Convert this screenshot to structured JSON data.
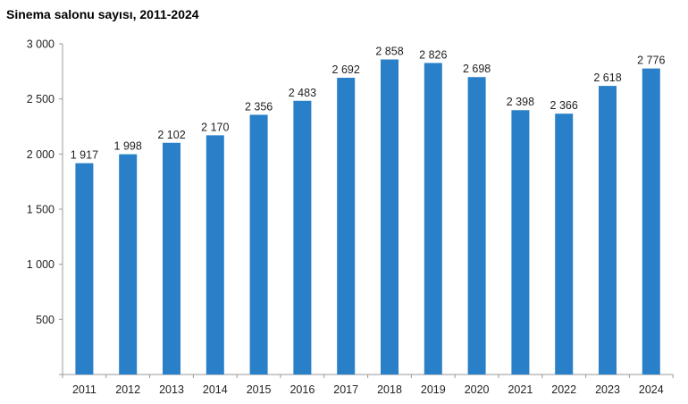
{
  "chart_data": {
    "type": "bar",
    "title": "Sinema salonu sayısı, 2011-2024",
    "xlabel": "",
    "ylabel": "",
    "categories": [
      "2011",
      "2012",
      "2013",
      "2014",
      "2015",
      "2016",
      "2017",
      "2018",
      "2019",
      "2020",
      "2021",
      "2022",
      "2023",
      "2024"
    ],
    "values": [
      1917,
      1998,
      2102,
      2170,
      2356,
      2483,
      2692,
      2858,
      2826,
      2698,
      2398,
      2366,
      2618,
      2776
    ],
    "data_labels": [
      "1 917",
      "1 998",
      "2 102",
      "2 170",
      "2 356",
      "2 483",
      "2 692",
      "2 858",
      "2 826",
      "2 698",
      "2 398",
      "2 366",
      "2 618",
      "2 776"
    ],
    "ylim": [
      0,
      3000
    ],
    "yticks": [
      500,
      1000,
      1500,
      2000,
      2500,
      3000
    ],
    "ytick_labels": [
      "500",
      "1 000",
      "1 500",
      "2 000",
      "2 500",
      "3 000"
    ],
    "grid": false,
    "legend": "none",
    "bar_color": "#2980c8",
    "axis_color": "#999999"
  }
}
